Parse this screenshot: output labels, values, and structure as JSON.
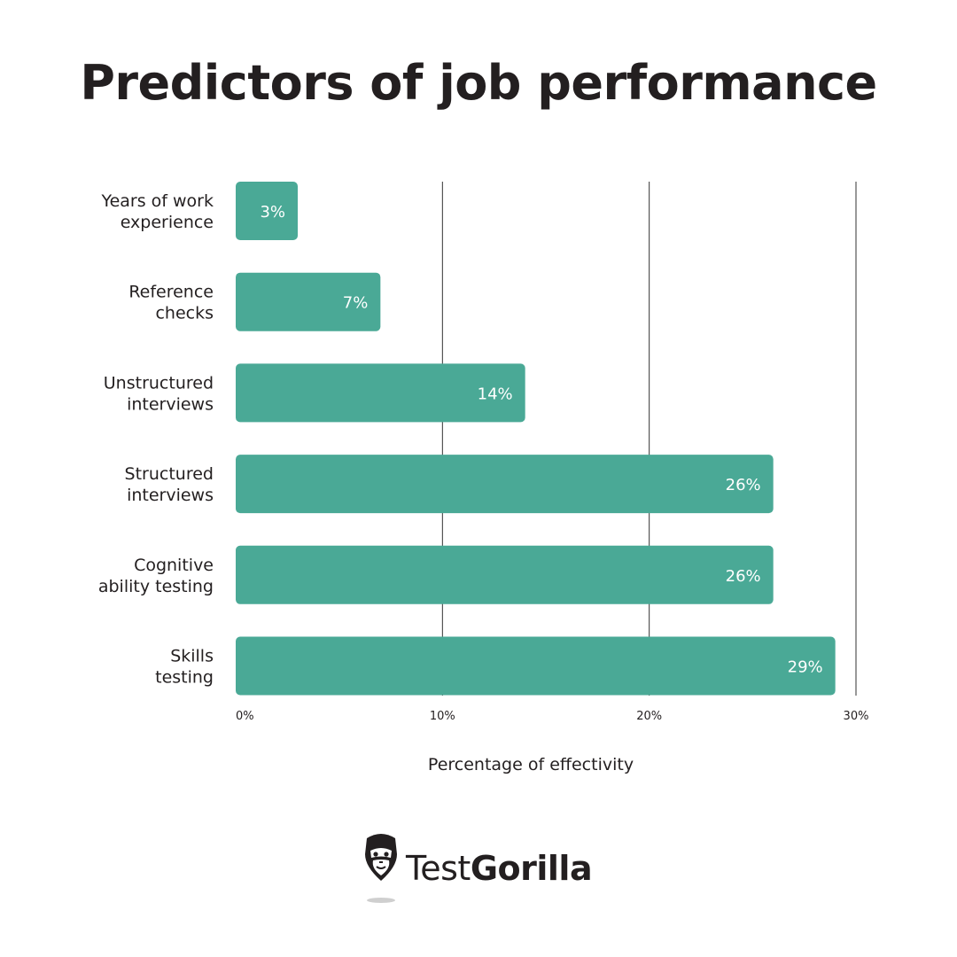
{
  "title": "Predictors of job performance",
  "chart_data": {
    "type": "bar",
    "orientation": "horizontal",
    "categories": [
      [
        "Years of work",
        "experience"
      ],
      [
        "Reference",
        "checks"
      ],
      [
        "Unstructured",
        "interviews"
      ],
      [
        "Structured",
        "interviews"
      ],
      [
        "Cognitive",
        "ability testing"
      ],
      [
        "Skills",
        "testing"
      ]
    ],
    "values": [
      3,
      7,
      14,
      26,
      26,
      29
    ],
    "value_labels": [
      "3%",
      "7%",
      "14%",
      "26%",
      "26%",
      "29%"
    ],
    "xlabel": "Percentage of effectivity",
    "xlim": [
      0,
      30
    ],
    "xticks": [
      0,
      10,
      20,
      30
    ],
    "xtick_labels": [
      "0%",
      "10%",
      "20%",
      "30%"
    ],
    "grid": true,
    "bar_color": "#4aa996",
    "grid_color": "#333333"
  },
  "brand": {
    "name_regular": "Test",
    "name_bold": "Gorilla",
    "icon": "gorilla-icon"
  }
}
